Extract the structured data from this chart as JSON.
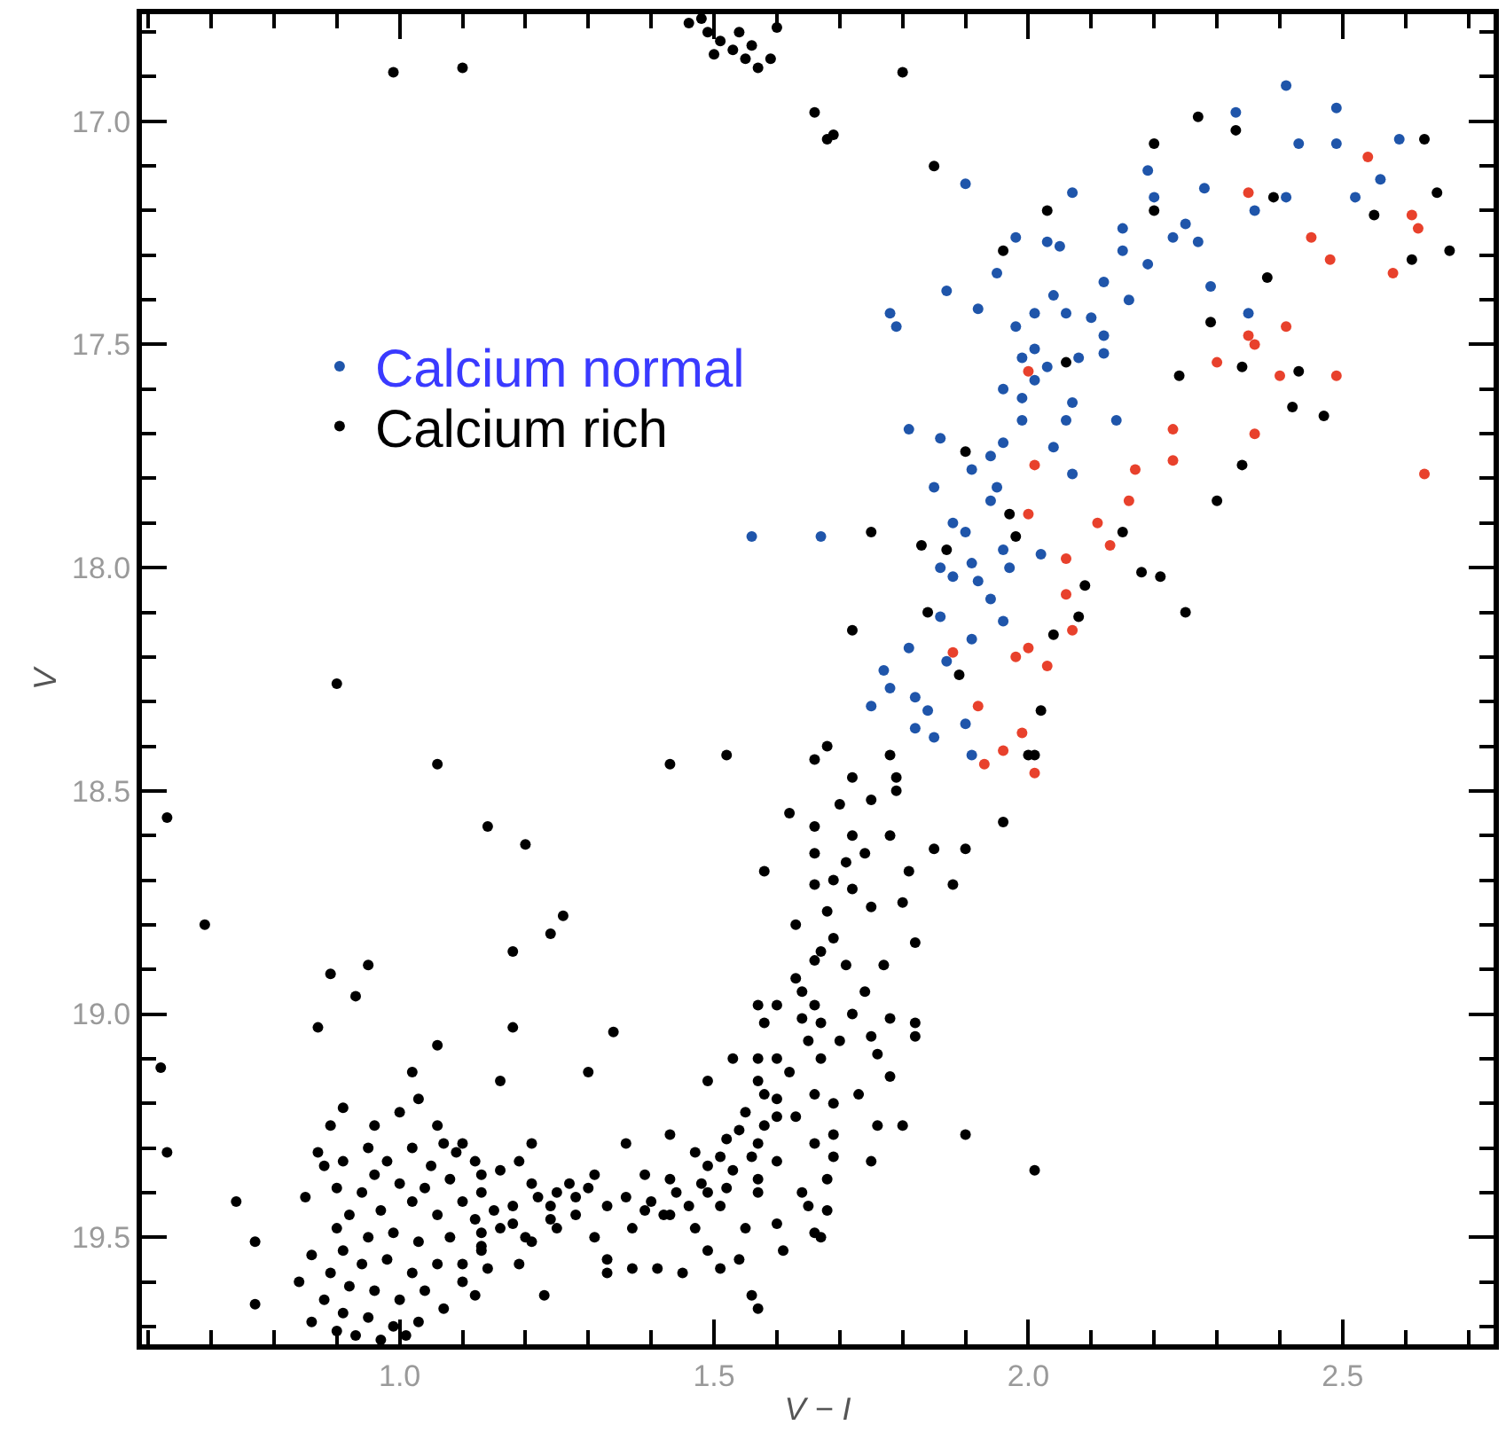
{
  "chart_data": {
    "type": "scatter",
    "xlabel": "V − I",
    "ylabel": "V",
    "xlim": [
      0.59,
      2.74
    ],
    "ylim": [
      19.74,
      16.76
    ],
    "xticks": [
      {
        "value": 0.6,
        "label": null
      },
      {
        "value": 0.7,
        "label": null
      },
      {
        "value": 0.8,
        "label": null
      },
      {
        "value": 0.9,
        "label": null
      },
      {
        "value": 1.0,
        "label": "1.0"
      },
      {
        "value": 1.1,
        "label": null
      },
      {
        "value": 1.2,
        "label": null
      },
      {
        "value": 1.3,
        "label": null
      },
      {
        "value": 1.4,
        "label": null
      },
      1.5,
      {
        "value": 1.6,
        "label": null
      },
      {
        "value": 1.7,
        "label": null
      },
      {
        "value": 1.8,
        "label": null
      },
      {
        "value": 1.9,
        "label": null
      },
      {
        "value": 2.0,
        "label": "2.0"
      },
      {
        "value": 2.1,
        "label": null
      },
      {
        "value": 2.2,
        "label": null
      },
      {
        "value": 2.3,
        "label": null
      },
      {
        "value": 2.4,
        "label": null
      },
      2.5,
      {
        "value": 2.6,
        "label": null
      },
      {
        "value": 2.7,
        "label": null
      }
    ],
    "yticks": [
      {
        "value": 16.8,
        "label": null
      },
      {
        "value": 16.9,
        "label": null
      },
      {
        "value": 17.0,
        "label": "17.0"
      },
      {
        "value": 17.1,
        "label": null
      },
      {
        "value": 17.2,
        "label": null
      },
      {
        "value": 17.3,
        "label": null
      },
      {
        "value": 17.4,
        "label": null
      },
      17.5,
      {
        "value": 17.6,
        "label": null
      },
      {
        "value": 17.7,
        "label": null
      },
      {
        "value": 17.8,
        "label": null
      },
      {
        "value": 17.9,
        "label": null
      },
      {
        "value": 18.0,
        "label": "18.0"
      },
      {
        "value": 18.1,
        "label": null
      },
      {
        "value": 18.2,
        "label": null
      },
      {
        "value": 18.3,
        "label": null
      },
      {
        "value": 18.4,
        "label": null
      },
      18.5,
      {
        "value": 18.6,
        "label": null
      },
      {
        "value": 18.7,
        "label": null
      },
      {
        "value": 18.8,
        "label": null
      },
      {
        "value": 18.9,
        "label": null
      },
      {
        "value": 19.0,
        "label": "19.0"
      },
      {
        "value": 19.1,
        "label": null
      },
      {
        "value": 19.2,
        "label": null
      },
      {
        "value": 19.3,
        "label": null
      },
      {
        "value": 19.4,
        "label": null
      },
      19.5,
      {
        "value": 19.6,
        "label": null
      },
      {
        "value": 19.7,
        "label": null
      }
    ],
    "grid": false,
    "legend": "top left",
    "marker": "circle",
    "series": [
      {
        "name": "Calcium normal",
        "color": "#1f55aa",
        "x": [
          2.33,
          2.41,
          2.43,
          2.49,
          2.49,
          2.59,
          2.56,
          2.52,
          2.28,
          2.36,
          2.25,
          2.41,
          2.07,
          2.19,
          2.2,
          2.15,
          1.9,
          2.03,
          1.95,
          1.98,
          1.87,
          1.92,
          2.05,
          2.12,
          2.15,
          2.16,
          2.04,
          2.19,
          2.23,
          2.27,
          2.29,
          2.35,
          2.1,
          2.12,
          2.06,
          2.01,
          1.98,
          2.01,
          2.07,
          2.12,
          2.08,
          2.03,
          2.14,
          1.78,
          1.79,
          2.01,
          2.06,
          2.04,
          1.99,
          1.96,
          1.99,
          1.96,
          1.95,
          1.91,
          1.94,
          1.86,
          1.81,
          1.9,
          1.85,
          1.86,
          1.88,
          1.92,
          1.91,
          1.97,
          1.88,
          1.96,
          1.94,
          2.02,
          1.96,
          1.91,
          1.86,
          1.81,
          1.77,
          1.82,
          1.87,
          1.78,
          1.84,
          1.85,
          1.82,
          1.9,
          1.91,
          1.75,
          1.56,
          1.67,
          1.94,
          1.99,
          2.07
        ],
        "values": [
          16.98,
          16.92,
          17.05,
          17.05,
          16.97,
          17.04,
          17.13,
          17.17,
          17.15,
          17.2,
          17.23,
          17.17,
          17.16,
          17.11,
          17.17,
          17.24,
          17.14,
          17.27,
          17.34,
          17.26,
          17.38,
          17.42,
          17.28,
          17.36,
          17.29,
          17.4,
          17.39,
          17.32,
          17.26,
          17.27,
          17.37,
          17.43,
          17.44,
          17.48,
          17.43,
          17.43,
          17.46,
          17.58,
          17.63,
          17.52,
          17.53,
          17.55,
          17.67,
          17.43,
          17.46,
          17.51,
          17.67,
          17.73,
          17.62,
          17.6,
          17.67,
          17.72,
          17.82,
          17.78,
          17.85,
          17.71,
          17.69,
          17.92,
          17.82,
          18.0,
          18.02,
          18.03,
          17.99,
          18.0,
          17.9,
          17.96,
          18.07,
          17.97,
          18.12,
          18.16,
          18.11,
          18.18,
          18.23,
          18.29,
          18.21,
          18.27,
          18.32,
          18.38,
          18.36,
          18.35,
          18.42,
          18.31,
          17.93,
          17.93,
          17.75,
          17.53,
          17.79
        ]
      },
      {
        "name": "Calcium rich",
        "color": "#000000",
        "x": [
          1.46,
          1.49,
          1.51,
          1.53,
          1.55,
          1.57,
          1.5,
          1.54,
          1.59,
          1.48,
          1.56,
          1.6,
          0.99,
          1.1,
          1.66,
          1.8,
          1.69,
          1.68,
          2.2,
          2.27,
          2.33,
          2.63,
          1.85,
          2.03,
          2.2,
          2.39,
          2.55,
          2.65,
          1.96,
          2.38,
          2.61,
          2.67,
          2.29,
          2.06,
          2.24,
          2.34,
          2.43,
          2.42,
          2.47,
          1.9,
          2.34,
          2.3,
          1.75,
          1.83,
          1.87,
          1.98,
          2.15,
          2.18,
          2.21,
          2.25,
          2.09,
          2.08,
          2.04,
          1.72,
          1.89,
          2.02,
          2.0,
          1.84,
          1.97,
          2.01,
          0.63,
          0.69,
          0.62,
          0.63,
          0.74,
          0.77,
          0.77,
          0.9,
          0.89,
          0.95,
          0.93,
          0.87,
          1.06,
          1.06,
          1.14,
          1.2,
          1.26,
          1.24,
          1.18,
          1.18,
          1.34,
          1.02,
          1.16,
          1.3,
          1.43,
          1.52,
          1.58,
          1.62,
          1.49,
          1.43,
          1.36,
          1.9,
          2.01,
          1.96,
          1.88,
          1.85,
          1.9,
          1.56,
          1.57,
          1.23,
          1.68,
          1.66,
          1.72,
          1.78,
          1.79,
          1.75,
          1.7,
          1.79,
          1.72,
          1.66,
          1.78,
          1.74,
          1.71,
          1.66,
          1.81,
          1.69,
          1.66,
          1.72,
          1.75,
          1.8,
          1.68,
          1.63,
          1.69,
          1.82,
          1.67,
          1.66,
          1.71,
          1.77,
          1.63,
          1.74,
          1.64,
          1.6,
          1.57,
          1.66,
          1.67,
          1.64,
          1.72,
          1.78,
          1.82,
          1.58,
          1.65,
          1.7,
          1.75,
          1.82,
          1.76,
          1.67,
          1.6,
          1.57,
          1.53,
          1.62,
          1.78,
          1.57,
          1.58,
          1.6,
          1.66,
          1.73,
          1.69,
          1.55,
          1.6,
          1.63,
          1.54,
          1.58,
          1.76,
          1.8,
          1.69,
          1.52,
          1.57,
          1.66,
          1.69,
          1.51,
          1.56,
          1.6,
          1.75,
          1.47,
          1.49,
          1.53,
          1.57,
          1.68,
          1.43,
          1.48,
          1.52,
          1.57,
          1.64,
          1.39,
          1.44,
          1.49,
          1.65,
          1.68,
          1.36,
          1.4,
          1.46,
          1.51,
          1.33,
          1.39,
          1.43,
          1.47,
          1.6,
          1.55,
          1.66,
          1.67,
          1.37,
          1.42,
          1.31,
          1.3,
          1.27,
          1.25,
          1.28,
          1.24,
          1.31,
          1.33,
          1.33,
          1.37,
          1.41,
          1.45,
          1.49,
          1.51,
          1.54,
          1.61,
          1.25,
          1.21,
          1.19,
          1.13,
          1.1,
          1.13,
          1.16,
          1.18,
          1.21,
          1.19,
          1.21,
          1.16,
          1.13,
          1.12,
          1.1,
          1.07,
          1.06,
          1.03,
          1.0,
          0.96,
          0.91,
          0.89,
          0.87,
          0.88,
          0.91,
          0.85,
          0.9,
          0.95,
          0.98,
          1.02,
          1.05,
          1.08,
          1.0,
          0.94,
          0.97,
          1.02,
          1.06,
          1.1,
          1.12,
          1.15,
          1.18,
          0.92,
          0.9,
          0.95,
          0.99,
          1.03,
          1.08,
          1.13,
          0.91,
          0.94,
          0.98,
          1.02,
          1.06,
          1.1,
          0.89,
          0.92,
          0.96,
          1.0,
          1.04,
          0.88,
          0.91,
          0.95,
          0.99,
          1.03,
          0.9,
          0.93,
          0.97,
          1.01,
          0.86,
          1.07,
          1.12,
          1.14,
          1.2,
          1.24,
          1.28,
          1.09,
          1.13,
          0.96,
          1.04,
          1.22,
          0.84,
          0.86
        ],
        "values": [
          16.78,
          16.8,
          16.82,
          16.84,
          16.86,
          16.88,
          16.85,
          16.8,
          16.86,
          16.77,
          16.83,
          16.79,
          16.89,
          16.88,
          16.98,
          16.89,
          17.03,
          17.04,
          17.05,
          16.99,
          17.02,
          17.04,
          17.1,
          17.2,
          17.2,
          17.17,
          17.21,
          17.16,
          17.29,
          17.35,
          17.31,
          17.29,
          17.45,
          17.54,
          17.57,
          17.55,
          17.56,
          17.64,
          17.66,
          17.74,
          17.77,
          17.85,
          17.92,
          17.95,
          17.96,
          17.93,
          17.92,
          18.01,
          18.02,
          18.1,
          18.04,
          18.11,
          18.15,
          18.14,
          18.24,
          18.32,
          18.42,
          18.1,
          17.88,
          18.42,
          18.56,
          18.8,
          19.12,
          19.31,
          19.42,
          19.51,
          19.65,
          18.26,
          18.91,
          18.89,
          18.96,
          19.03,
          19.07,
          18.44,
          18.58,
          18.62,
          18.78,
          18.82,
          18.86,
          19.03,
          19.04,
          19.13,
          19.15,
          19.13,
          18.44,
          18.42,
          18.68,
          18.55,
          19.15,
          19.27,
          19.29,
          19.27,
          19.35,
          18.57,
          18.71,
          18.63,
          18.63,
          19.63,
          19.66,
          19.63,
          18.4,
          18.43,
          18.47,
          18.42,
          18.47,
          18.52,
          18.53,
          18.5,
          18.6,
          18.58,
          18.6,
          18.64,
          18.66,
          18.64,
          18.68,
          18.7,
          18.71,
          18.72,
          18.76,
          18.75,
          18.77,
          18.8,
          18.83,
          18.84,
          18.86,
          18.88,
          18.89,
          18.89,
          18.92,
          18.95,
          18.95,
          18.98,
          18.98,
          18.98,
          19.02,
          19.01,
          19.0,
          19.01,
          19.02,
          19.02,
          19.06,
          19.06,
          19.05,
          19.05,
          19.09,
          19.1,
          19.1,
          19.1,
          19.1,
          19.13,
          19.14,
          19.15,
          19.18,
          19.19,
          19.18,
          19.18,
          19.2,
          19.22,
          19.23,
          19.23,
          19.26,
          19.25,
          19.25,
          19.25,
          19.27,
          19.28,
          19.29,
          19.29,
          19.32,
          19.32,
          19.32,
          19.33,
          19.33,
          19.31,
          19.34,
          19.35,
          19.37,
          19.37,
          19.37,
          19.38,
          19.39,
          19.4,
          19.4,
          19.36,
          19.4,
          19.4,
          19.43,
          19.44,
          19.41,
          19.42,
          19.43,
          19.43,
          19.43,
          19.44,
          19.45,
          19.48,
          19.47,
          19.48,
          19.49,
          19.5,
          19.48,
          19.45,
          19.36,
          19.39,
          19.38,
          19.4,
          19.41,
          19.43,
          19.5,
          19.55,
          19.58,
          19.57,
          19.57,
          19.58,
          19.53,
          19.57,
          19.55,
          19.53,
          19.48,
          19.51,
          19.56,
          19.53,
          19.56,
          19.49,
          19.48,
          19.43,
          19.38,
          19.33,
          19.29,
          19.35,
          19.4,
          19.33,
          19.29,
          19.29,
          19.25,
          19.19,
          19.22,
          19.25,
          19.21,
          19.25,
          19.31,
          19.34,
          19.33,
          19.41,
          19.39,
          19.3,
          19.33,
          19.3,
          19.34,
          19.37,
          19.38,
          19.4,
          19.44,
          19.42,
          19.45,
          19.42,
          19.46,
          19.44,
          19.47,
          19.45,
          19.48,
          19.5,
          19.49,
          19.51,
          19.5,
          19.52,
          19.53,
          19.56,
          19.55,
          19.58,
          19.56,
          19.6,
          19.58,
          19.61,
          19.62,
          19.64,
          19.62,
          19.64,
          19.67,
          19.68,
          19.7,
          19.69,
          19.71,
          19.72,
          19.73,
          19.72,
          19.69,
          19.66,
          19.63,
          19.57,
          19.5,
          19.46,
          19.45,
          19.31,
          19.36,
          19.36,
          19.39,
          19.41,
          19.6,
          19.54
        ]
      },
      {
        "color": "#e8412c",
        "x": [
          2.54,
          2.35,
          2.61,
          2.62,
          2.45,
          2.48,
          2.58,
          2.41,
          2.35,
          2.36,
          2.3,
          2.0,
          2.4,
          2.49,
          2.23,
          2.36,
          2.23,
          2.63,
          2.17,
          2.16,
          2.01,
          2.0,
          2.11,
          2.13,
          2.06,
          2.06,
          2.07,
          1.88,
          2.0,
          1.98,
          2.03,
          1.92,
          1.99,
          1.96,
          1.93,
          2.01
        ],
        "values": [
          17.08,
          17.16,
          17.21,
          17.24,
          17.26,
          17.31,
          17.34,
          17.46,
          17.48,
          17.5,
          17.54,
          17.56,
          17.57,
          17.57,
          17.69,
          17.7,
          17.76,
          17.79,
          17.78,
          17.85,
          17.77,
          17.88,
          17.9,
          17.95,
          17.98,
          18.06,
          18.14,
          18.19,
          18.18,
          18.2,
          18.22,
          18.31,
          18.37,
          18.41,
          18.44,
          18.46
        ]
      }
    ]
  }
}
